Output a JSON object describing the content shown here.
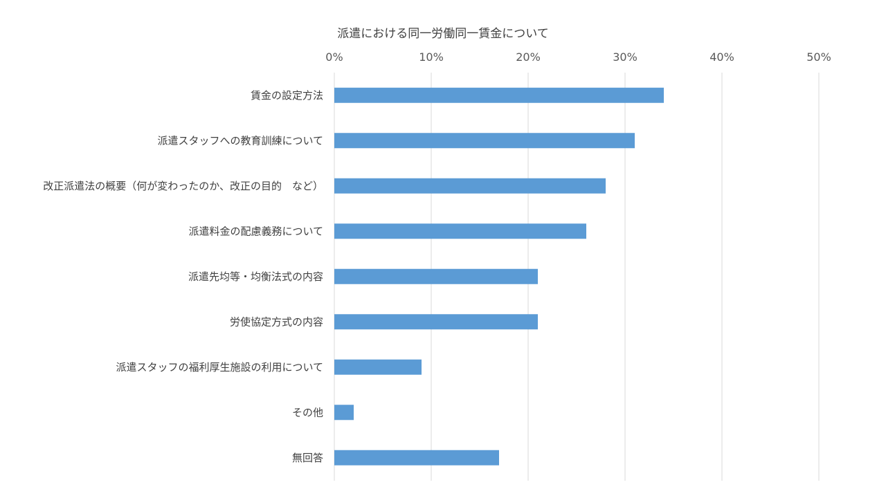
{
  "chart_data": {
    "type": "bar",
    "orientation": "horizontal",
    "title": "派遣における同一労働同一賃金について",
    "xlabel": "",
    "ylabel": "",
    "categories": [
      "賃金の設定方法",
      "派遣スタッフへの教育訓練について",
      "改正派遣法の概要（何が変わったのか、改正の目的　など）",
      "派遣料金の配慮義務について",
      "派遣先均等・均衡法式の内容",
      "労使協定方式の内容",
      "派遣スタッフの福利厚生施設の利用について",
      "その他",
      "無回答"
    ],
    "values": [
      34,
      31,
      28,
      26,
      21,
      21,
      9,
      2,
      17
    ],
    "xlim": [
      0,
      50
    ],
    "x_ticks": [
      0,
      10,
      20,
      30,
      40,
      50
    ],
    "x_tick_labels": [
      "0%",
      "10%",
      "20%",
      "30%",
      "40%",
      "50%"
    ],
    "x_axis_position": "top",
    "grid": true,
    "legend": "none",
    "colors": {
      "bar": "#5b9bd5",
      "grid": "#d9d9d9",
      "text": "#404040",
      "tick_text": "#595959"
    }
  }
}
